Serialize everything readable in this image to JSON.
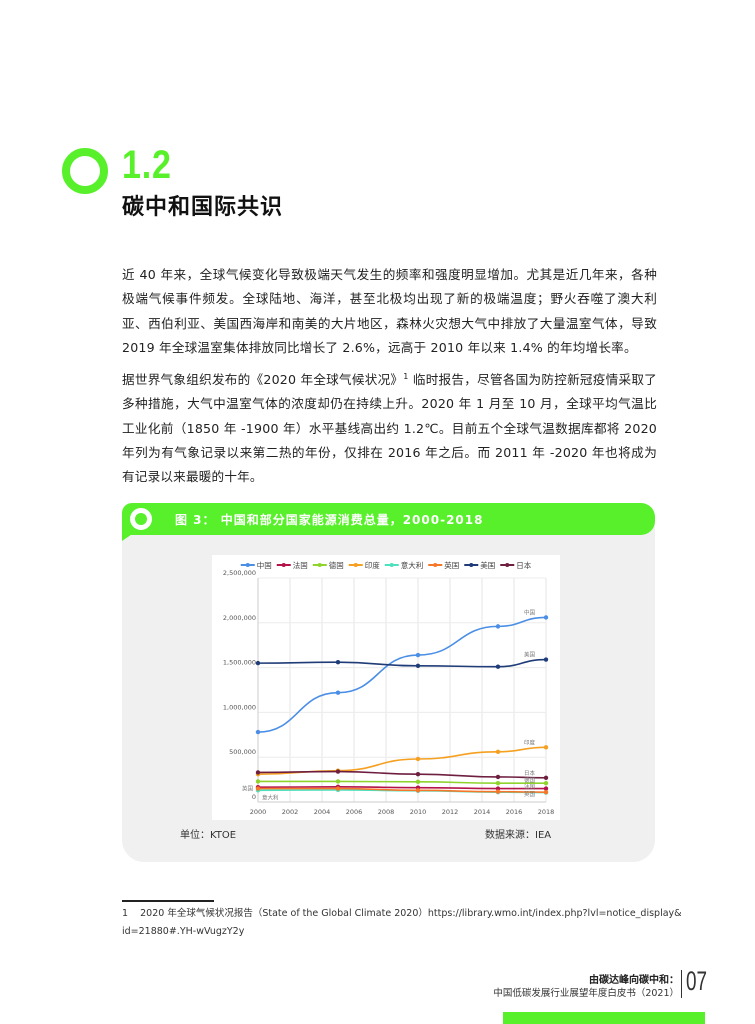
{
  "section": {
    "number": "1.2",
    "title": "碳中和国际共识"
  },
  "paragraphs": [
    "近 40 年来，全球气候变化导致极端天气发生的频率和强度明显增加。尤其是近几年来，各种极端气候事件频发。全球陆地、海洋，甚至北极均出现了新的极端温度；野火吞噬了澳大利亚、西伯利亚、美国西海岸和南美的大片地区，森林火灾想大气中排放了大量温室气体，导致 2019 年全球温室集体排放同比增长了 2.6%，远高于 2010 年以来 1.4% 的年均增长率。",
    "据世界气象组织发布的《2020 年全球气候状况》",
    "临时报告，尽管各国为防控新冠疫情采取了多种措施，大气中温室气体的浓度却仍在持续上升。2020 年 1 月至 10 月，全球平均气温比工业化前（1850 年 -1900 年）水平基线高出约 1.2℃。目前五个全球气温数据库都将 2020 年列为有气象记录以来第二热的年份，仅排在 2016 年之后。而 2011 年 -2020 年也将成为有记录以来最暖的十年。"
  ],
  "footnote_ref": "1",
  "figure": {
    "title": "图 3：  中国和部分国家能源消费总量，2000-2018",
    "unit": "单位：KTOE",
    "source": "数据来源：IEA"
  },
  "chart_data": {
    "type": "line",
    "x": [
      2000,
      2005,
      2010,
      2015,
      2018
    ],
    "xticks": [
      "2000",
      "2002",
      "2004",
      "2006",
      "2008",
      "2010",
      "2012",
      "2014",
      "2016",
      "2018"
    ],
    "yticks": [
      "0",
      "500,000",
      "1,000,000",
      "1,500,000",
      "2,000,000",
      "2,500,000"
    ],
    "ylim": [
      0,
      2500000
    ],
    "xlim": [
      2000,
      2018
    ],
    "grid": true,
    "legend_position": "top",
    "series": [
      {
        "name": "中国",
        "color": "#4a8ee6",
        "marker": "diamond",
        "values": [
          780000,
          1220000,
          1640000,
          1960000,
          2060000
        ],
        "end_label": "中国"
      },
      {
        "name": "法国",
        "color": "#b3134a",
        "marker": "square",
        "values": [
          165000,
          170000,
          160000,
          150000,
          150000
        ],
        "end_label": "法国"
      },
      {
        "name": "德国",
        "color": "#8fd42c",
        "marker": "triangle",
        "values": [
          230000,
          230000,
          225000,
          210000,
          210000
        ],
        "end_label": "德国"
      },
      {
        "name": "印度",
        "color": "#f5a020",
        "marker": "x",
        "values": [
          310000,
          350000,
          480000,
          560000,
          610000
        ],
        "end_label": "印度"
      },
      {
        "name": "意大利",
        "color": "#4fe0bd",
        "marker": "circle",
        "values": [
          130000,
          135000,
          125000,
          110000,
          105000
        ],
        "start_label": "意大利"
      },
      {
        "name": "英国",
        "color": "#f7772a",
        "marker": "circle",
        "values": [
          150000,
          150000,
          130000,
          115000,
          110000
        ],
        "start_label": "英国",
        "end_label": "英国"
      },
      {
        "name": "美国",
        "color": "#1f3c78",
        "marker": "plus",
        "values": [
          1550000,
          1560000,
          1520000,
          1510000,
          1590000
        ],
        "end_label": "美国"
      },
      {
        "name": "日本",
        "color": "#6e1f40",
        "marker": "circle",
        "values": [
          330000,
          340000,
          310000,
          280000,
          270000
        ],
        "end_label": "日本"
      }
    ]
  },
  "footnote": {
    "number": "1",
    "text": "2020 年全球气候状况报告（State of the Global Climate 2020）https://library.wmo.int/index.php?lvl=notice_display&id=21880#.YH-wVugzY2y"
  },
  "footer": {
    "line1": "由碳达峰向碳中和：",
    "line2": "中国低碳发展行业展望年度白皮书（2021）",
    "page": "07"
  },
  "colors": {
    "accent": "#58f02a"
  }
}
